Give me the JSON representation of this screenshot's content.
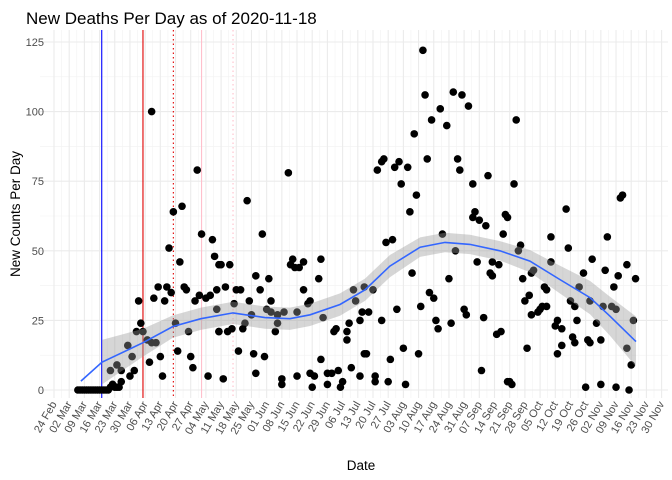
{
  "chart_data": {
    "type": "scatter",
    "title": "New Deaths Per Day as of 2020-11-18",
    "xlabel": "Date",
    "ylabel": "New Counts Per Day",
    "x_units": "days since 2020-02-24",
    "xlim": [
      -3.5,
      283
    ],
    "ylim": [
      -3,
      129
    ],
    "grid": true,
    "legend": "none",
    "yticks": [
      0,
      25,
      50,
      75,
      100,
      125
    ],
    "ytick_labels": [
      "0",
      "25",
      "50",
      "75",
      "100",
      "125"
    ],
    "xtick_labels": [
      "24 Feb",
      "02 Mar",
      "09 Mar",
      "16 Mar",
      "23 Mar",
      "30 Mar",
      "06 Apr",
      "13 Apr",
      "20 Apr",
      "27 Apr",
      "04 May",
      "11 May",
      "18 May",
      "25 May",
      "01 Jun",
      "08 Jun",
      "15 Jun",
      "22 Jun",
      "29 Jun",
      "06 Jul",
      "13 Jul",
      "20 Jul",
      "27 Jul",
      "03 Aug",
      "10 Aug",
      "17 Aug",
      "24 Aug",
      "31 Aug",
      "07 Sep",
      "14 Sep",
      "21 Sep",
      "28 Sep",
      "05 Oct",
      "12 Oct",
      "19 Oct",
      "26 Oct",
      "02 Nov",
      "09 Nov",
      "16 Nov",
      "23 Nov",
      "30 Nov"
    ],
    "colors": {
      "points": "#000000",
      "smooth": "#3366ff",
      "band": "#999999"
    },
    "vlines": [
      {
        "x": 22,
        "color": "#0000ff",
        "style": "solid"
      },
      {
        "x": 41,
        "color": "#e00000",
        "style": "solid"
      },
      {
        "x": 55,
        "color": "#e00000",
        "style": "dotted"
      },
      {
        "x": 68,
        "color": "#ffc0cb",
        "style": "solid"
      },
      {
        "x": 82.5,
        "color": "#ffc0cb",
        "style": "dotted"
      }
    ],
    "points": [
      [
        11,
        0
      ],
      [
        12,
        0
      ],
      [
        13,
        0
      ],
      [
        14,
        0
      ],
      [
        15,
        0
      ],
      [
        16,
        0
      ],
      [
        17,
        0
      ],
      [
        18,
        0
      ],
      [
        19,
        0
      ],
      [
        20,
        0
      ],
      [
        21,
        0
      ],
      [
        22,
        0
      ],
      [
        23,
        0
      ],
      [
        24,
        0
      ],
      [
        25,
        0
      ],
      [
        26,
        1
      ],
      [
        27,
        2
      ],
      [
        29,
        1
      ],
      [
        30,
        1
      ],
      [
        31,
        3
      ],
      [
        45,
        100
      ],
      [
        66,
        79
      ],
      [
        59,
        66
      ],
      [
        55,
        64
      ],
      [
        68,
        56
      ],
      [
        73,
        54
      ],
      [
        53,
        51
      ],
      [
        74,
        48
      ],
      [
        58,
        46
      ],
      [
        76,
        45
      ],
      [
        48,
        37
      ],
      [
        52,
        37
      ],
      [
        54,
        35
      ],
      [
        60,
        37
      ],
      [
        61,
        36
      ],
      [
        46,
        33
      ],
      [
        51,
        32
      ],
      [
        39,
        32
      ],
      [
        65,
        32
      ],
      [
        67,
        34
      ],
      [
        70,
        33
      ],
      [
        40,
        24
      ],
      [
        38,
        21
      ],
      [
        41,
        21
      ],
      [
        75,
        36
      ],
      [
        72,
        34
      ],
      [
        56,
        24
      ],
      [
        62,
        21
      ],
      [
        76,
        21
      ],
      [
        34,
        16
      ],
      [
        43,
        18
      ],
      [
        45,
        17
      ],
      [
        47,
        17
      ],
      [
        36,
        12
      ],
      [
        57,
        14
      ],
      [
        63,
        12
      ],
      [
        49,
        12
      ],
      [
        44,
        10
      ],
      [
        26,
        7
      ],
      [
        29,
        9
      ],
      [
        31,
        7
      ],
      [
        37,
        7
      ],
      [
        35,
        5
      ],
      [
        64,
        8
      ],
      [
        50,
        5
      ],
      [
        71,
        5
      ],
      [
        27,
        2
      ],
      [
        28,
        1
      ],
      [
        108,
        78
      ],
      [
        89,
        68
      ],
      [
        96,
        56
      ],
      [
        77,
        45
      ],
      [
        81,
        45
      ],
      [
        110,
        47
      ],
      [
        115,
        46
      ],
      [
        123,
        47
      ],
      [
        109,
        45
      ],
      [
        111,
        44
      ],
      [
        113,
        44
      ],
      [
        93,
        41
      ],
      [
        99,
        40
      ],
      [
        122,
        40
      ],
      [
        79,
        37
      ],
      [
        84,
        36
      ],
      [
        86,
        36
      ],
      [
        95,
        36
      ],
      [
        115,
        36
      ],
      [
        100,
        32
      ],
      [
        75,
        29
      ],
      [
        83,
        31
      ],
      [
        90,
        32
      ],
      [
        98,
        29
      ],
      [
        100,
        28
      ],
      [
        103,
        27
      ],
      [
        106,
        28
      ],
      [
        112,
        28
      ],
      [
        117,
        31
      ],
      [
        118,
        32
      ],
      [
        138,
        36
      ],
      [
        143,
        37
      ],
      [
        139,
        32
      ],
      [
        91,
        27
      ],
      [
        103,
        24
      ],
      [
        88,
        24
      ],
      [
        87,
        22
      ],
      [
        124,
        26
      ],
      [
        142,
        28
      ],
      [
        141,
        25
      ],
      [
        76,
        21
      ],
      [
        80,
        21
      ],
      [
        82,
        22
      ],
      [
        102,
        21
      ],
      [
        129,
        21
      ],
      [
        130,
        22
      ],
      [
        136,
        24
      ],
      [
        135,
        21
      ],
      [
        135,
        18
      ],
      [
        85,
        14
      ],
      [
        92,
        13
      ],
      [
        97,
        12
      ],
      [
        123,
        11
      ],
      [
        143,
        13
      ],
      [
        93,
        6
      ],
      [
        78,
        4
      ],
      [
        105,
        4
      ],
      [
        105,
        2
      ],
      [
        112,
        5
      ],
      [
        118,
        6
      ],
      [
        120,
        5
      ],
      [
        126,
        6
      ],
      [
        128,
        6
      ],
      [
        131,
        7
      ],
      [
        137,
        8
      ],
      [
        141,
        5
      ],
      [
        119,
        1
      ],
      [
        126,
        2
      ],
      [
        133,
        3
      ],
      [
        132,
        1
      ],
      [
        170,
        122
      ],
      [
        171,
        106
      ],
      [
        184,
        107
      ],
      [
        188,
        106
      ],
      [
        191,
        102
      ],
      [
        178,
        101
      ],
      [
        174,
        97
      ],
      [
        181,
        95
      ],
      [
        166,
        92
      ],
      [
        149,
        79
      ],
      [
        151,
        82
      ],
      [
        152,
        83
      ],
      [
        157,
        80
      ],
      [
        159,
        82
      ],
      [
        163,
        80
      ],
      [
        172,
        83
      ],
      [
        186,
        83
      ],
      [
        187,
        79
      ],
      [
        160,
        74
      ],
      [
        193,
        74
      ],
      [
        200,
        77
      ],
      [
        167,
        70
      ],
      [
        164,
        64
      ],
      [
        193,
        62
      ],
      [
        194,
        64
      ],
      [
        196,
        61
      ],
      [
        199,
        59
      ],
      [
        208,
        63
      ],
      [
        209,
        62
      ],
      [
        207,
        56
      ],
      [
        153,
        53
      ],
      [
        156,
        54
      ],
      [
        179,
        56
      ],
      [
        185,
        50
      ],
      [
        195,
        46
      ],
      [
        202,
        46
      ],
      [
        205,
        45
      ],
      [
        201,
        42
      ],
      [
        202,
        41
      ],
      [
        165,
        42
      ],
      [
        182,
        40
      ],
      [
        147,
        36
      ],
      [
        173,
        35
      ],
      [
        175,
        33
      ],
      [
        158,
        29
      ],
      [
        169,
        30
      ],
      [
        189,
        29
      ],
      [
        190,
        27
      ],
      [
        145,
        28
      ],
      [
        151,
        25
      ],
      [
        176,
        25
      ],
      [
        177,
        22
      ],
      [
        183,
        24
      ],
      [
        198,
        26
      ],
      [
        204,
        20
      ],
      [
        206,
        21
      ],
      [
        144,
        13
      ],
      [
        161,
        15
      ],
      [
        155,
        11
      ],
      [
        168,
        13
      ],
      [
        148,
        5
      ],
      [
        148,
        3
      ],
      [
        154,
        3
      ],
      [
        162,
        2
      ],
      [
        197,
        7
      ],
      [
        209,
        3
      ],
      [
        213,
        97
      ],
      [
        212,
        74
      ],
      [
        262,
        70
      ],
      [
        261,
        69
      ],
      [
        236,
        65
      ],
      [
        229,
        55
      ],
      [
        255,
        55
      ],
      [
        237,
        51
      ],
      [
        215,
        52
      ],
      [
        214,
        50
      ],
      [
        248,
        47
      ],
      [
        229,
        46
      ],
      [
        254,
        43
      ],
      [
        264,
        45
      ],
      [
        244,
        42
      ],
      [
        221,
        43
      ],
      [
        220,
        42
      ],
      [
        260,
        41
      ],
      [
        268,
        40
      ],
      [
        216,
        40
      ],
      [
        242,
        37
      ],
      [
        258,
        37
      ],
      [
        226,
        37
      ],
      [
        227,
        36
      ],
      [
        217,
        32
      ],
      [
        219,
        34
      ],
      [
        238,
        32
      ],
      [
        240,
        30
      ],
      [
        247,
        32
      ],
      [
        253,
        30
      ],
      [
        257,
        30
      ],
      [
        259,
        29
      ],
      [
        225,
        30
      ],
      [
        227,
        30
      ],
      [
        220,
        27
      ],
      [
        223,
        28
      ],
      [
        224,
        29
      ],
      [
        267,
        25
      ],
      [
        241,
        25
      ],
      [
        232,
        25
      ],
      [
        231,
        23
      ],
      [
        234,
        22
      ],
      [
        250,
        24
      ],
      [
        239,
        19
      ],
      [
        240,
        17
      ],
      [
        246,
        18
      ],
      [
        247,
        17
      ],
      [
        252,
        18
      ],
      [
        234,
        16
      ],
      [
        264,
        15
      ],
      [
        218,
        15
      ],
      [
        232,
        13
      ],
      [
        266,
        9
      ],
      [
        210,
        3
      ],
      [
        211,
        2
      ],
      [
        245,
        1
      ],
      [
        252,
        2
      ],
      [
        259,
        1
      ],
      [
        265,
        0
      ]
    ],
    "smooth": {
      "method": "loess",
      "x": [
        12.4,
        22.1,
        41,
        54.8,
        67.7,
        82.5,
        97.2,
        108.7,
        118,
        131.8,
        143.3,
        154.8,
        168.7,
        180.2,
        191.7,
        205.5,
        219.3,
        233.1,
        247,
        256.2,
        268.2
      ],
      "y": [
        3.2,
        10,
        17,
        22.8,
        25.6,
        27.7,
        26,
        25.6,
        27,
        30.7,
        36,
        44.5,
        51.3,
        53,
        52.3,
        50,
        46.3,
        39.7,
        33.2,
        26.5,
        17.4
      ],
      "se": [
        null,
        8,
        5,
        4,
        4,
        4,
        4,
        4,
        4,
        4,
        4,
        4,
        3.5,
        3.5,
        3.5,
        3.5,
        4,
        5,
        6,
        7,
        9
      ]
    }
  }
}
